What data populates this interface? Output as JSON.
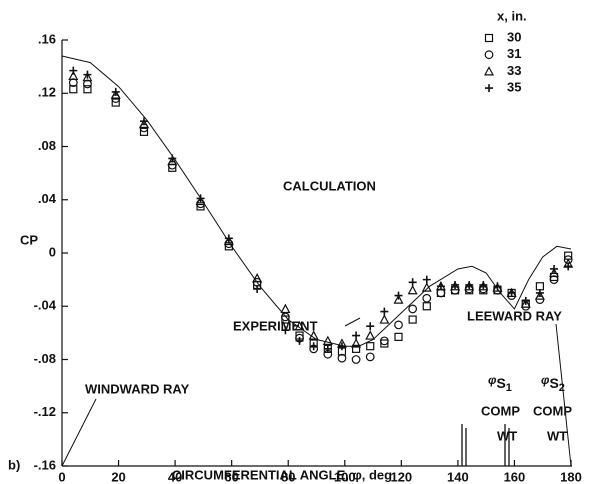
{
  "chart_data": {
    "type": "scatter",
    "xlabel": "CIRCUMFERENTIAL ANGLE, φ, deg",
    "ylabel": "CP",
    "panel_label": "b)",
    "xlim": [
      0,
      180
    ],
    "ylim": [
      -0.16,
      0.16
    ],
    "xticks": [
      0,
      20,
      40,
      60,
      80,
      100,
      120,
      140,
      160,
      180
    ],
    "yticks": [
      {
        "value": 0.16,
        "label": ".16"
      },
      {
        "value": 0.12,
        "label": ".12"
      },
      {
        "value": 0.08,
        "label": ".08"
      },
      {
        "value": 0.04,
        "label": ".04"
      },
      0,
      {
        "value": -0.04,
        "label": "-.04"
      },
      {
        "value": -0.08,
        "label": "-.08"
      },
      {
        "value": -0.12,
        "label": "-.12"
      },
      {
        "value": -0.16,
        "label": "-.16"
      }
    ],
    "legend_title": "x, in.",
    "color": "#111111",
    "curve": {
      "label": "CALCULATION",
      "x": [
        0,
        10,
        20,
        30,
        40,
        50,
        60,
        70,
        80,
        90,
        100,
        105,
        110,
        120,
        130,
        140,
        145,
        150,
        155,
        160,
        165,
        170,
        175,
        180
      ],
      "values": [
        0.148,
        0.143,
        0.125,
        0.1,
        0.07,
        0.038,
        0.005,
        -0.025,
        -0.05,
        -0.065,
        -0.07,
        -0.07,
        -0.065,
        -0.045,
        -0.025,
        -0.012,
        -0.01,
        -0.015,
        -0.03,
        -0.042,
        -0.02,
        -0.003,
        0.005,
        0.003
      ]
    },
    "series": [
      {
        "name": "30",
        "marker": "square",
        "x": [
          4,
          9,
          19,
          29,
          39,
          49,
          59,
          69,
          79,
          84,
          89,
          94,
          99,
          104,
          109,
          114,
          119,
          124,
          129,
          134,
          139,
          144,
          149,
          154,
          159,
          164,
          169,
          174,
          179
        ],
        "values": [
          0.123,
          0.123,
          0.113,
          0.091,
          0.064,
          0.035,
          0.005,
          -0.024,
          -0.05,
          -0.062,
          -0.068,
          -0.072,
          -0.074,
          -0.072,
          -0.07,
          -0.068,
          -0.063,
          -0.05,
          -0.04,
          -0.03,
          -0.028,
          -0.028,
          -0.028,
          -0.028,
          -0.03,
          -0.038,
          -0.025,
          -0.018,
          -0.002
        ]
      },
      {
        "name": "31",
        "marker": "circle",
        "x": [
          4,
          9,
          19,
          29,
          39,
          49,
          59,
          69,
          79,
          84,
          89,
          94,
          99,
          104,
          109,
          114,
          119,
          124,
          129,
          134,
          139,
          144,
          149,
          154,
          159,
          164,
          169,
          174,
          179
        ],
        "values": [
          0.128,
          0.127,
          0.116,
          0.094,
          0.066,
          0.037,
          0.007,
          -0.022,
          -0.048,
          -0.064,
          -0.072,
          -0.076,
          -0.079,
          -0.08,
          -0.078,
          -0.066,
          -0.054,
          -0.042,
          -0.034,
          -0.03,
          -0.028,
          -0.027,
          -0.027,
          -0.028,
          -0.032,
          -0.04,
          -0.035,
          -0.02,
          -0.005
        ]
      },
      {
        "name": "33",
        "marker": "triangle",
        "x": [
          4,
          9,
          19,
          29,
          39,
          49,
          59,
          69,
          79,
          84,
          89,
          94,
          99,
          104,
          109,
          114,
          119,
          124,
          129,
          134,
          139,
          144,
          149,
          154,
          159,
          164,
          169,
          174,
          179
        ],
        "values": [
          0.133,
          0.132,
          0.119,
          0.097,
          0.069,
          0.039,
          0.009,
          -0.019,
          -0.042,
          -0.055,
          -0.062,
          -0.066,
          -0.068,
          -0.068,
          -0.062,
          -0.05,
          -0.035,
          -0.028,
          -0.026,
          -0.025,
          -0.025,
          -0.025,
          -0.025,
          -0.026,
          -0.03,
          -0.038,
          -0.032,
          -0.015,
          -0.008
        ]
      },
      {
        "name": "35",
        "marker": "plus",
        "x": [
          4,
          9,
          19,
          29,
          39,
          49,
          59,
          69,
          79,
          84,
          89,
          94,
          99,
          104,
          109,
          114,
          119,
          124,
          129,
          134,
          139,
          144,
          149,
          154,
          159,
          164,
          169,
          174,
          179
        ],
        "values": [
          0.137,
          0.134,
          0.121,
          0.099,
          0.071,
          0.041,
          0.011,
          -0.027,
          -0.058,
          -0.066,
          -0.07,
          -0.072,
          -0.07,
          -0.062,
          -0.055,
          -0.044,
          -0.032,
          -0.022,
          -0.02,
          -0.025,
          -0.024,
          -0.024,
          -0.024,
          -0.025,
          -0.03,
          -0.036,
          -0.03,
          -0.012,
          -0.01
        ]
      }
    ],
    "annotations": [
      "EXPERIMENT",
      "WINDWARD RAY",
      "LEEWARD RAY",
      "COMP",
      "WT",
      "COMP",
      "WT"
    ],
    "phi_labels": [
      [
        "φ",
        "S",
        "1"
      ],
      [
        "φ",
        "S",
        "2"
      ]
    ]
  }
}
